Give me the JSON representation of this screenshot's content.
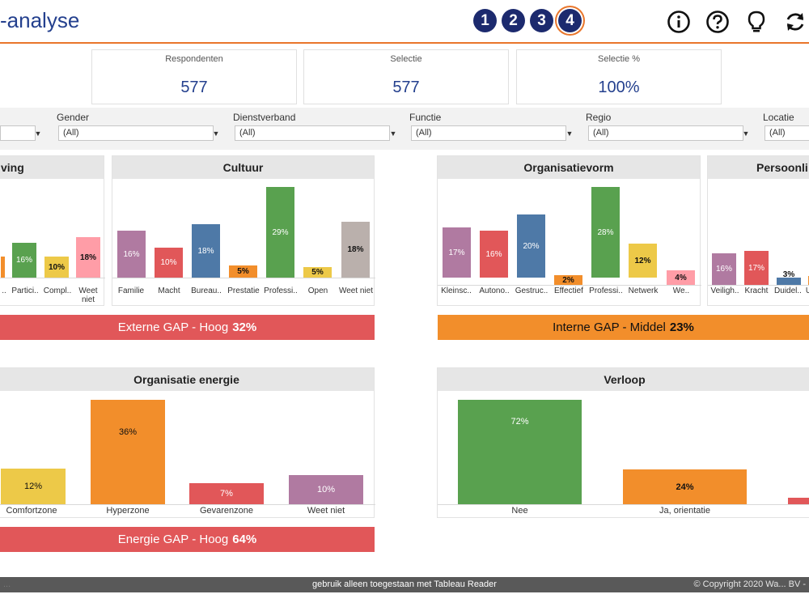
{
  "header": {
    "title": "-analyse",
    "steps": [
      "1",
      "2",
      "3",
      "4"
    ],
    "icons": [
      "info-icon",
      "help-icon",
      "lightbulb-icon",
      "refresh-icon"
    ]
  },
  "kpis": [
    {
      "label": "Respondenten",
      "value": "577"
    },
    {
      "label": "Selectie",
      "value": "577"
    },
    {
      "label": "Selectie %",
      "value": "100%"
    }
  ],
  "filters": [
    {
      "label": "Gender",
      "value": "(All)"
    },
    {
      "label": "Dienstverband",
      "value": "(All)"
    },
    {
      "label": "Functie",
      "value": "(All)"
    },
    {
      "label": "Regio",
      "value": "(All)"
    },
    {
      "label": "Locatie",
      "value": "(All)"
    }
  ],
  "panels": {
    "omgeving": {
      "title": "ving",
      "cats": [
        "..",
        "Partici..",
        "Compl..",
        "Weet niet"
      ],
      "values": [
        "",
        "16%",
        "10%",
        "18%"
      ]
    },
    "cultuur": {
      "title": "Cultuur",
      "cats": [
        "Familie",
        "Macht",
        "Bureau..",
        "Prestatie",
        "Professi..",
        "Open",
        "Weet niet"
      ],
      "values": [
        "16%",
        "10%",
        "18%",
        "5%",
        "29%",
        "5%",
        "18%"
      ]
    },
    "organisatievorm": {
      "title": "Organisatievorm",
      "cats": [
        "Kleinsc..",
        "Autono..",
        "Gestruc..",
        "Effectief",
        "Professi..",
        "Netwerk",
        "We.."
      ],
      "values": [
        "17%",
        "16%",
        "20%",
        "2%",
        "28%",
        "12%",
        "4%"
      ]
    },
    "persoonlijk": {
      "title": "Persoonli",
      "cats": [
        "Veiligh..",
        "Kracht",
        "Duidel..",
        "U"
      ],
      "values": [
        "16%",
        "17%",
        "3%",
        ""
      ]
    },
    "energie": {
      "title": "Organisatie energie",
      "cats": [
        "Comfortzone",
        "Hyperzone",
        "Gevarenzone",
        "Weet niet"
      ],
      "values": [
        "12%",
        "36%",
        "7%",
        "10%"
      ]
    },
    "verloop": {
      "title": "Verloop",
      "cats": [
        "Nee",
        "Ja, orientatie",
        ""
      ],
      "values": [
        "72%",
        "24%",
        ""
      ]
    }
  },
  "gaps": {
    "extern": {
      "label": "Externe GAP - Hoog",
      "value": "32%"
    },
    "intern": {
      "label": "Interne GAP - Middel",
      "value": "23%"
    },
    "energie": {
      "label": "Energie GAP - Hoog",
      "value": "64%"
    }
  },
  "footer": {
    "left": "...",
    "center": "gebruik alleen toegestaan met Tableau Reader",
    "right": "© Copyright 2020 Wa... BV -"
  },
  "colors": {
    "accent": "#e9762b",
    "navy": "#1c2a6e",
    "blue": "#24408e",
    "purple": "#b07aa1",
    "red": "#e15759",
    "steel": "#4e79a7",
    "orange": "#f28e2b",
    "green": "#59a14f",
    "yellow": "#edc948",
    "pink": "#ff9da7",
    "taupe": "#bab0ac"
  }
}
